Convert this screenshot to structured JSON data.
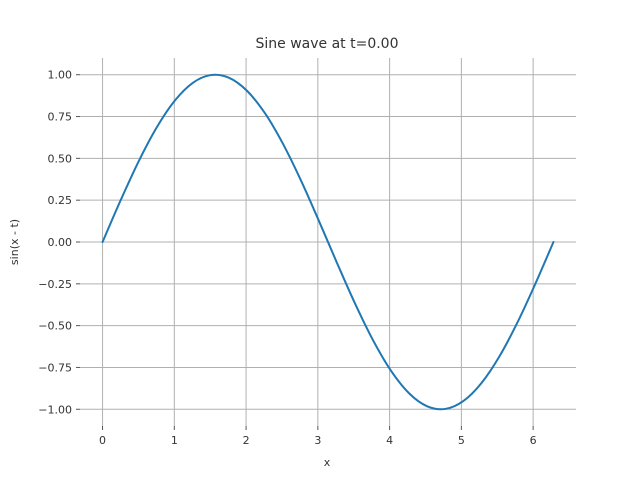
{
  "chart_data": {
    "type": "line",
    "title": "Sine wave at t=0.00",
    "xlabel": "x",
    "ylabel": "sin(x - t)",
    "t": 0.0,
    "xlim": [
      -0.3142,
      6.5973
    ],
    "ylim": [
      -1.1,
      1.1
    ],
    "xticks": [
      0,
      1,
      2,
      3,
      4,
      5,
      6
    ],
    "xtick_labels": [
      "0",
      "1",
      "2",
      "3",
      "4",
      "5",
      "6"
    ],
    "yticks": [
      1.0,
      0.75,
      0.5,
      0.25,
      0.0,
      -0.25,
      -0.5,
      -0.75,
      -1.0
    ],
    "ytick_labels": [
      "1.00",
      "0.75",
      "0.50",
      "0.25",
      "0.00",
      "−0.25",
      "−0.50",
      "−0.75",
      "−1.00"
    ],
    "grid": true,
    "series": [
      {
        "color": "#1f77b4",
        "x": [
          0.0,
          0.2513,
          0.5027,
          0.754,
          1.0053,
          1.2566,
          1.508,
          1.7593,
          2.0106,
          2.2619,
          2.5133,
          2.7646,
          3.0159,
          3.2673,
          3.5186,
          3.7699,
          4.0212,
          4.2726,
          4.5239,
          4.7752,
          5.0265,
          5.2779,
          5.5292,
          5.7805,
          6.0319,
          6.2832
        ],
        "y": [
          0.0,
          0.2487,
          0.4818,
          0.6845,
          0.8443,
          0.9511,
          0.998,
          0.9823,
          0.9048,
          0.7705,
          0.5878,
          0.3681,
          0.1253,
          -0.1253,
          -0.3681,
          -0.5878,
          -0.7705,
          -0.9048,
          -0.9823,
          -0.998,
          -0.9511,
          -0.8443,
          -0.6845,
          -0.4818,
          -0.2487,
          0.0
        ]
      }
    ]
  }
}
